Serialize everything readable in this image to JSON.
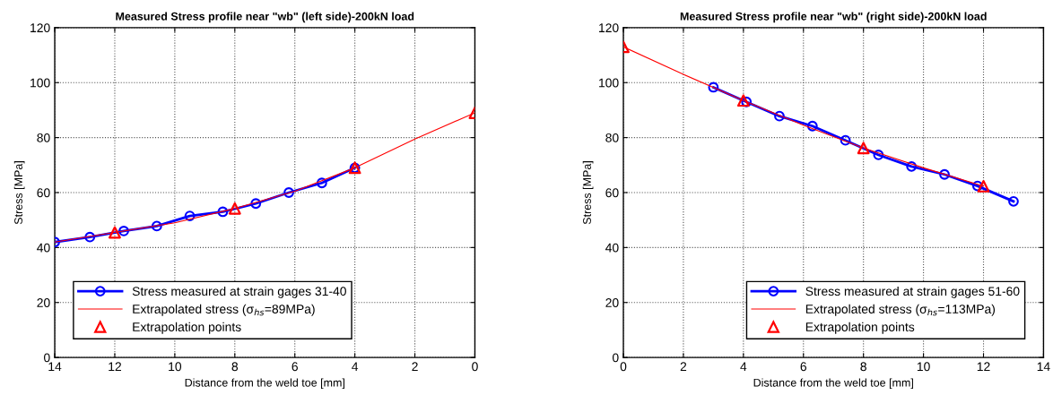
{
  "chart_data": [
    {
      "type": "line",
      "title": "Measured Stress profile near \"wb\" (left side)-200kN load",
      "xlabel": "Distance from the weld toe [mm]",
      "ylabel": "Stress [MPa]",
      "xlim": [
        14,
        0
      ],
      "xticks": [
        14,
        12,
        10,
        8,
        6,
        4,
        2,
        0
      ],
      "ylim": [
        0,
        120
      ],
      "yticks": [
        0,
        20,
        40,
        60,
        80,
        100,
        120
      ],
      "grid": true,
      "legend": "bottom left",
      "series": [
        {
          "name": "Stress measured at strain gages 31-40",
          "color": "#0000ff",
          "marker": "circle",
          "x": [
            14,
            12.83,
            11.7,
            10.6,
            9.5,
            8.4,
            7.3,
            6.2,
            5.1,
            4.0
          ],
          "values": [
            42,
            43.8,
            46,
            47.8,
            51.5,
            53,
            56,
            60,
            63.5,
            69
          ]
        },
        {
          "name": "Extrapolated stress (σ$_{hs}$=89MPa)",
          "color": "#ff0000",
          "marker": "none",
          "x": [
            14,
            12,
            10,
            8,
            6,
            4,
            2,
            0
          ],
          "values": [
            42,
            45.5,
            49,
            54.2,
            60.5,
            69,
            79.5,
            89
          ]
        },
        {
          "name": "Extrapolation points",
          "color": "#ff0000",
          "type": "scatter",
          "marker": "triangle",
          "x": [
            12,
            8,
            4,
            0
          ],
          "values": [
            45.5,
            54.2,
            69,
            89
          ]
        }
      ]
    },
    {
      "type": "line",
      "title": "Measured Stress profile near \"wb\" (right side)-200kN load",
      "xlabel": "Distance from the weld toe [mm]",
      "ylabel": "Stress [MPa]",
      "xlim": [
        0,
        14
      ],
      "xticks": [
        0,
        2,
        4,
        6,
        8,
        10,
        12,
        14
      ],
      "ylim": [
        0,
        120
      ],
      "yticks": [
        0,
        20,
        40,
        60,
        80,
        100,
        120
      ],
      "grid": true,
      "legend": "bottom right",
      "series": [
        {
          "name": "Stress measured at strain gages 51-60",
          "color": "#0000ff",
          "marker": "circle",
          "x": [
            3.0,
            4.1,
            5.2,
            6.3,
            7.4,
            8.5,
            9.6,
            10.7,
            11.8,
            13.0
          ],
          "values": [
            98.3,
            93,
            87.8,
            84.2,
            79,
            73.7,
            69.5,
            66.6,
            62.4,
            56.8
          ]
        },
        {
          "name": "Extrapolated stress (σ$_{hs}$=113MPa)",
          "color": "#ff0000",
          "marker": "none",
          "x": [
            0,
            2,
            4,
            6,
            8,
            10,
            12
          ],
          "values": [
            113,
            103,
            93.5,
            84.5,
            76.2,
            69,
            62.3
          ]
        },
        {
          "name": "Extrapolation points",
          "color": "#ff0000",
          "type": "scatter",
          "marker": "triangle",
          "x": [
            0,
            4,
            8,
            12
          ],
          "values": [
            113,
            93.5,
            76.2,
            62.3
          ]
        }
      ]
    }
  ]
}
